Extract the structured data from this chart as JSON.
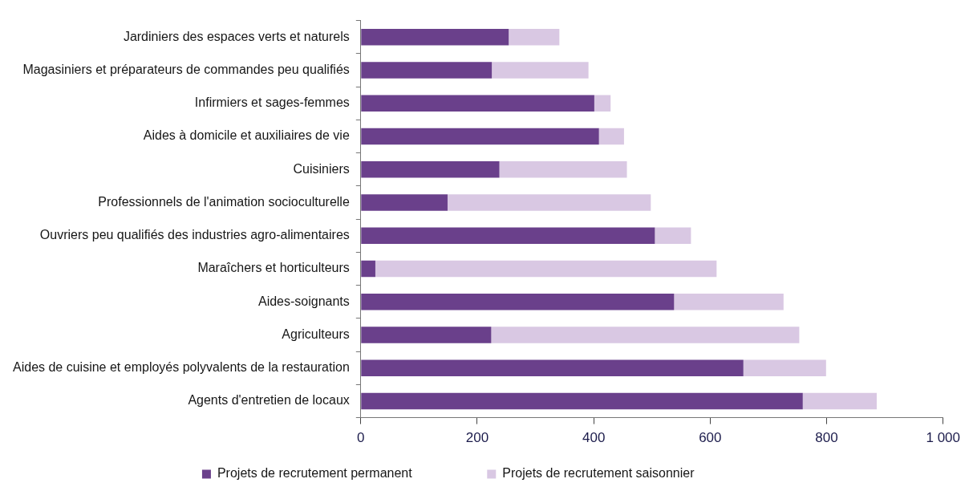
{
  "chart_data": {
    "type": "bar",
    "orientation": "horizontal",
    "stacked": true,
    "categories": [
      "Jardiniers des espaces verts et naturels",
      "Magasiniers et préparateurs de commandes peu qualifiés",
      "Infirmiers et sages-femmes",
      "Aides à domicile et auxiliaires de vie",
      "Cuisiniers",
      "Professionnels de l'animation socioculturelle",
      "Ouvriers peu qualifiés des industries agro-alimentaires",
      "Maraîchers et horticulteurs",
      "Aides-soignants",
      "Agriculteurs",
      "Aides de cuisine et employés polyvalents de la restauration",
      "Agents d'entretien de locaux"
    ],
    "series": [
      {
        "name": "Projets de recrutement permanent",
        "color": "#6a408b",
        "values": [
          254,
          225,
          401,
          409,
          238,
          149,
          505,
          25,
          538,
          224,
          657,
          759
        ]
      },
      {
        "name": "Projets de recrutement saisonnier",
        "color": "#d9c8e3",
        "values": [
          87,
          166,
          28,
          43,
          219,
          349,
          62,
          586,
          188,
          529,
          142,
          127
        ]
      }
    ],
    "xlim": [
      0,
      1000
    ],
    "xticks": [
      0,
      200,
      400,
      600,
      800,
      {
        "value": 1000,
        "label": "1 000"
      }
    ],
    "grid": false,
    "legend": "bottom"
  }
}
